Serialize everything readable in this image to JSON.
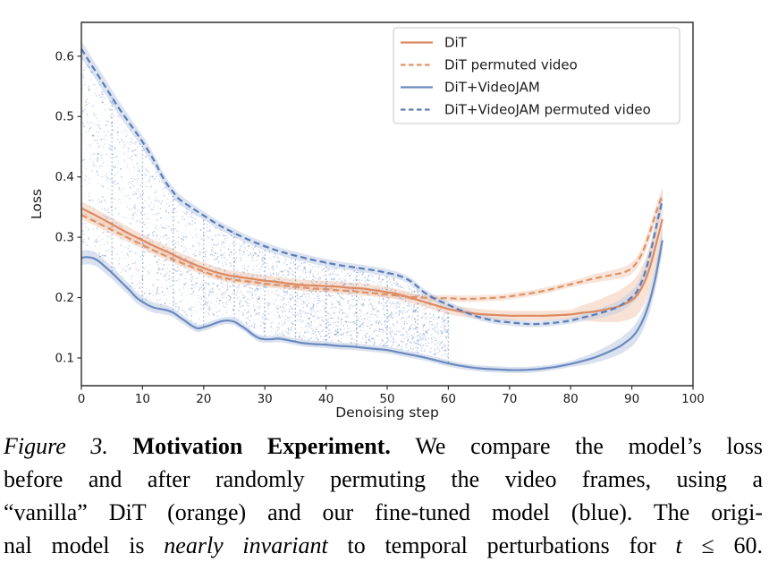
{
  "chart_data": {
    "type": "line",
    "title": "",
    "xlabel": "Denoising step",
    "ylabel": "Loss",
    "xlim": [
      0,
      100
    ],
    "ylim": [
      0.054,
      0.656
    ],
    "x_ticks": [
      0,
      10,
      20,
      30,
      40,
      50,
      60,
      70,
      80,
      90,
      100
    ],
    "y_ticks": [
      0.1,
      0.2,
      0.3,
      0.4,
      0.5,
      0.6
    ],
    "grid": false,
    "legend_position": "upper right",
    "series": [
      {
        "name": "DiT",
        "color": "#DC8A62",
        "style": "solid",
        "band_color": "#F2C6AE",
        "band_widths": [
          0.011,
          0.009,
          0.008,
          0.042
        ],
        "points": [
          [
            0,
            0.348
          ],
          [
            2,
            0.338
          ],
          [
            4,
            0.327
          ],
          [
            6,
            0.316
          ],
          [
            8,
            0.305
          ],
          [
            10,
            0.295
          ],
          [
            12,
            0.285
          ],
          [
            14,
            0.276
          ],
          [
            16,
            0.266
          ],
          [
            18,
            0.257
          ],
          [
            20,
            0.249
          ],
          [
            22,
            0.242
          ],
          [
            24,
            0.237
          ],
          [
            26,
            0.234
          ],
          [
            28,
            0.231
          ],
          [
            30,
            0.228
          ],
          [
            32,
            0.226
          ],
          [
            34,
            0.223
          ],
          [
            36,
            0.221
          ],
          [
            38,
            0.22
          ],
          [
            40,
            0.219
          ],
          [
            42,
            0.218
          ],
          [
            44,
            0.216
          ],
          [
            46,
            0.215
          ],
          [
            48,
            0.212
          ],
          [
            50,
            0.209
          ],
          [
            52,
            0.205
          ],
          [
            54,
            0.199
          ],
          [
            56,
            0.193
          ],
          [
            58,
            0.187
          ],
          [
            60,
            0.181
          ],
          [
            62,
            0.177
          ],
          [
            64,
            0.174
          ],
          [
            66,
            0.172
          ],
          [
            68,
            0.171
          ],
          [
            70,
            0.17
          ],
          [
            72,
            0.17
          ],
          [
            74,
            0.17
          ],
          [
            76,
            0.17
          ],
          [
            78,
            0.171
          ],
          [
            80,
            0.172
          ],
          [
            82,
            0.175
          ],
          [
            84,
            0.177
          ],
          [
            86,
            0.181
          ],
          [
            88,
            0.186
          ],
          [
            90,
            0.196
          ],
          [
            91,
            0.206
          ],
          [
            92,
            0.224
          ],
          [
            93,
            0.252
          ],
          [
            94,
            0.29
          ],
          [
            95,
            0.33
          ]
        ]
      },
      {
        "name": "DiT permuted video",
        "color": "#DF9266",
        "style": "dashed",
        "band_color": "#F2CAB4",
        "band_widths": [
          0.007,
          0.006,
          0.005,
          0.012
        ],
        "points": [
          [
            0,
            0.337
          ],
          [
            2,
            0.327
          ],
          [
            4,
            0.317
          ],
          [
            6,
            0.307
          ],
          [
            8,
            0.297
          ],
          [
            10,
            0.287
          ],
          [
            12,
            0.277
          ],
          [
            14,
            0.268
          ],
          [
            16,
            0.259
          ],
          [
            18,
            0.251
          ],
          [
            20,
            0.243
          ],
          [
            22,
            0.236
          ],
          [
            24,
            0.231
          ],
          [
            26,
            0.228
          ],
          [
            28,
            0.226
          ],
          [
            30,
            0.223
          ],
          [
            32,
            0.221
          ],
          [
            34,
            0.219
          ],
          [
            36,
            0.217
          ],
          [
            38,
            0.215
          ],
          [
            40,
            0.214
          ],
          [
            42,
            0.212
          ],
          [
            44,
            0.211
          ],
          [
            46,
            0.209
          ],
          [
            48,
            0.207
          ],
          [
            50,
            0.205
          ],
          [
            52,
            0.203
          ],
          [
            54,
            0.201
          ],
          [
            56,
            0.2
          ],
          [
            58,
            0.199
          ],
          [
            60,
            0.199
          ],
          [
            62,
            0.198
          ],
          [
            64,
            0.198
          ],
          [
            66,
            0.199
          ],
          [
            68,
            0.2
          ],
          [
            70,
            0.202
          ],
          [
            72,
            0.205
          ],
          [
            74,
            0.208
          ],
          [
            76,
            0.212
          ],
          [
            78,
            0.217
          ],
          [
            80,
            0.222
          ],
          [
            82,
            0.227
          ],
          [
            84,
            0.232
          ],
          [
            86,
            0.236
          ],
          [
            88,
            0.24
          ],
          [
            89,
            0.243
          ],
          [
            90,
            0.249
          ],
          [
            91,
            0.261
          ],
          [
            92,
            0.281
          ],
          [
            93,
            0.31
          ],
          [
            94,
            0.342
          ],
          [
            95,
            0.371
          ]
        ]
      },
      {
        "name": "DiT+VideoJAM",
        "color": "#6A89BE",
        "style": "solid",
        "band_color": "#B5C6E2",
        "band_widths": [
          0.012,
          0.006,
          0.005,
          0.02
        ],
        "points": [
          [
            0,
            0.266
          ],
          [
            1,
            0.267
          ],
          [
            2,
            0.265
          ],
          [
            3,
            0.259
          ],
          [
            4,
            0.25
          ],
          [
            5,
            0.241
          ],
          [
            6,
            0.231
          ],
          [
            7,
            0.221
          ],
          [
            8,
            0.211
          ],
          [
            9,
            0.2
          ],
          [
            10,
            0.193
          ],
          [
            11,
            0.187
          ],
          [
            12,
            0.183
          ],
          [
            13,
            0.181
          ],
          [
            14,
            0.179
          ],
          [
            15,
            0.175
          ],
          [
            16,
            0.168
          ],
          [
            17,
            0.161
          ],
          [
            18,
            0.154
          ],
          [
            19,
            0.149
          ],
          [
            20,
            0.151
          ],
          [
            21,
            0.154
          ],
          [
            22,
            0.158
          ],
          [
            23,
            0.161
          ],
          [
            24,
            0.162
          ],
          [
            25,
            0.16
          ],
          [
            26,
            0.154
          ],
          [
            27,
            0.147
          ],
          [
            28,
            0.139
          ],
          [
            29,
            0.133
          ],
          [
            30,
            0.131
          ],
          [
            31,
            0.131
          ],
          [
            32,
            0.132
          ],
          [
            33,
            0.131
          ],
          [
            34,
            0.129
          ],
          [
            35,
            0.127
          ],
          [
            36,
            0.125
          ],
          [
            38,
            0.123
          ],
          [
            40,
            0.122
          ],
          [
            42,
            0.12
          ],
          [
            44,
            0.119
          ],
          [
            46,
            0.117
          ],
          [
            48,
            0.115
          ],
          [
            50,
            0.113
          ],
          [
            52,
            0.109
          ],
          [
            54,
            0.105
          ],
          [
            56,
            0.101
          ],
          [
            58,
            0.096
          ],
          [
            60,
            0.091
          ],
          [
            62,
            0.087
          ],
          [
            64,
            0.084
          ],
          [
            66,
            0.082
          ],
          [
            68,
            0.081
          ],
          [
            70,
            0.08
          ],
          [
            72,
            0.08
          ],
          [
            74,
            0.081
          ],
          [
            76,
            0.083
          ],
          [
            78,
            0.086
          ],
          [
            80,
            0.09
          ],
          [
            82,
            0.095
          ],
          [
            84,
            0.101
          ],
          [
            86,
            0.109
          ],
          [
            88,
            0.119
          ],
          [
            89,
            0.126
          ],
          [
            90,
            0.134
          ],
          [
            91,
            0.147
          ],
          [
            92,
            0.167
          ],
          [
            93,
            0.197
          ],
          [
            94,
            0.24
          ],
          [
            95,
            0.295
          ]
        ]
      },
      {
        "name": "DiT+VideoJAM permuted video",
        "color": "#5C7CB8",
        "style": "dashed",
        "band_color": "#B9C9E4",
        "band_widths": [
          0.014,
          0.007,
          0.005,
          0.014
        ],
        "points": [
          [
            0,
            0.612
          ],
          [
            2,
            0.58
          ],
          [
            4,
            0.548
          ],
          [
            6,
            0.516
          ],
          [
            8,
            0.487
          ],
          [
            10,
            0.458
          ],
          [
            12,
            0.425
          ],
          [
            13,
            0.405
          ],
          [
            14,
            0.388
          ],
          [
            15,
            0.375
          ],
          [
            16,
            0.363
          ],
          [
            18,
            0.349
          ],
          [
            20,
            0.336
          ],
          [
            22,
            0.323
          ],
          [
            24,
            0.312
          ],
          [
            26,
            0.302
          ],
          [
            28,
            0.293
          ],
          [
            30,
            0.285
          ],
          [
            32,
            0.278
          ],
          [
            34,
            0.272
          ],
          [
            36,
            0.267
          ],
          [
            38,
            0.262
          ],
          [
            40,
            0.258
          ],
          [
            42,
            0.254
          ],
          [
            44,
            0.251
          ],
          [
            46,
            0.248
          ],
          [
            48,
            0.245
          ],
          [
            50,
            0.241
          ],
          [
            52,
            0.236
          ],
          [
            54,
            0.226
          ],
          [
            56,
            0.209
          ],
          [
            58,
            0.197
          ],
          [
            60,
            0.188
          ],
          [
            62,
            0.179
          ],
          [
            64,
            0.171
          ],
          [
            66,
            0.165
          ],
          [
            68,
            0.161
          ],
          [
            70,
            0.159
          ],
          [
            72,
            0.157
          ],
          [
            74,
            0.156
          ],
          [
            76,
            0.157
          ],
          [
            78,
            0.159
          ],
          [
            80,
            0.162
          ],
          [
            82,
            0.167
          ],
          [
            84,
            0.172
          ],
          [
            86,
            0.178
          ],
          [
            88,
            0.186
          ],
          [
            90,
            0.201
          ],
          [
            91,
            0.213
          ],
          [
            92,
            0.237
          ],
          [
            93,
            0.272
          ],
          [
            94,
            0.318
          ],
          [
            95,
            0.362
          ]
        ]
      }
    ],
    "annotations": {
      "stipple_region": {
        "x_range": [
          0,
          60
        ],
        "between": [
          "DiT+VideoJAM permuted video",
          "DiT+VideoJAM"
        ],
        "dot_color": "#5577BB"
      },
      "dotted_vlines_x": [
        5,
        10,
        15,
        20,
        25,
        30,
        35,
        40,
        45,
        50,
        55,
        60
      ],
      "vline_color": "#4D6FAE"
    },
    "spine_color": "#2E2E2E",
    "legend_border_color": "#C9C9C9"
  },
  "caption": {
    "lines": [
      [
        {
          "t": "Figure 3. ",
          "s": "i"
        },
        {
          "t": "Motivation Experiment. ",
          "s": "b"
        },
        {
          "t": "We compare the model’s loss",
          "s": "r"
        }
      ],
      [
        {
          "t": "before and after randomly permuting the video frames, using a",
          "s": "r"
        }
      ],
      [
        {
          "t": "“vanilla” DiT (orange) and our fine-tuned model (blue). The origi-",
          "s": "r"
        }
      ],
      [
        {
          "t": "nal model is ",
          "s": "r"
        },
        {
          "t": "nearly invariant",
          "s": "i"
        },
        {
          "t": " to temporal perturbations for ",
          "s": "r"
        },
        {
          "t": "t",
          "s": "i"
        },
        {
          "t": " ≤ 60.",
          "s": "r"
        }
      ]
    ]
  }
}
